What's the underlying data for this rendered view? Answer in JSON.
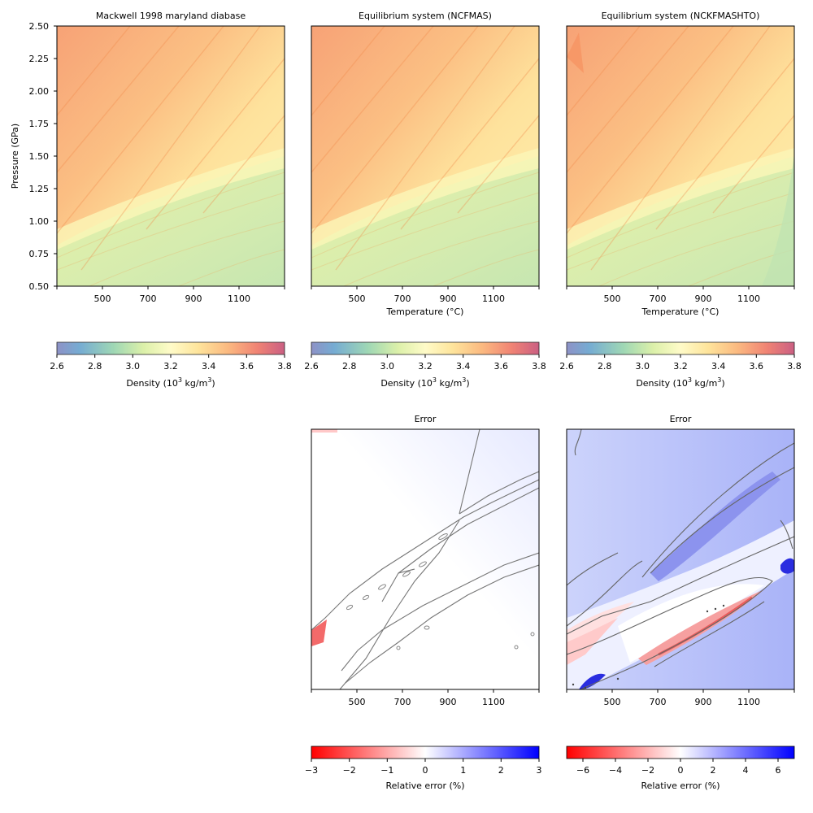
{
  "figure": {
    "titles": {
      "p1": "Mackwell 1998 maryland diabase",
      "p2": "Equilibrium system (NCFMAS)",
      "p3": "Equilibrium system (NCKFMASHTO)",
      "e2": "Error",
      "e3": "Error"
    },
    "ylabel": "Pressure (GPa)",
    "xlabel": "Temperature (°C)",
    "density_cbar_label_prefix": "Density (10",
    "density_cbar_label_exp": "3",
    "density_cbar_label_mid": " kg/m",
    "density_cbar_label_exp2": "3",
    "density_cbar_label_suffix": ")",
    "error_cbar_label": "Relative error (%)"
  },
  "chart_data": [
    {
      "id": "p1",
      "type": "heatmap",
      "title": "Mackwell 1998 maryland diabase",
      "xlabel": "",
      "ylabel": "Pressure (GPa)",
      "xlim": [
        300,
        1300
      ],
      "ylim": [
        0.5,
        2.5
      ],
      "x_ticks": [
        "500",
        "700",
        "900",
        "1100"
      ],
      "y_ticks": [
        "0.50",
        "0.75",
        "1.00",
        "1.25",
        "1.50",
        "1.75",
        "2.00",
        "2.25",
        "2.50"
      ],
      "colorbar": {
        "label": "Density (10³ kg/m³)",
        "range": [
          2.6,
          3.8
        ],
        "ticks": [
          "2.6",
          "2.8",
          "3.0",
          "3.2",
          "3.4",
          "3.6",
          "3.8"
        ],
        "colormap": "Spectral_r"
      }
    },
    {
      "id": "p2",
      "type": "heatmap",
      "title": "Equilibrium system (NCFMAS)",
      "xlabel": "Temperature (°C)",
      "xlim": [
        300,
        1300
      ],
      "ylim": [
        0.5,
        2.5
      ],
      "x_ticks": [
        "500",
        "700",
        "900",
        "1100"
      ],
      "colorbar": {
        "label": "Density (10³ kg/m³)",
        "range": [
          2.6,
          3.8
        ],
        "ticks": [
          "2.6",
          "2.8",
          "3.0",
          "3.2",
          "3.4",
          "3.6",
          "3.8"
        ],
        "colormap": "Spectral_r"
      }
    },
    {
      "id": "p3",
      "type": "heatmap",
      "title": "Equilibrium system (NCKFMASHTO)",
      "xlabel": "Temperature (°C)",
      "xlim": [
        300,
        1300
      ],
      "ylim": [
        0.5,
        2.5
      ],
      "x_ticks": [
        "500",
        "700",
        "900",
        "1100"
      ],
      "colorbar": {
        "label": "Density (10³ kg/m³)",
        "range": [
          2.6,
          3.8
        ],
        "ticks": [
          "2.6",
          "2.8",
          "3.0",
          "3.2",
          "3.4",
          "3.6",
          "3.8"
        ],
        "colormap": "Spectral_r"
      }
    },
    {
      "id": "e2",
      "type": "heatmap",
      "title": "Error",
      "xlim": [
        300,
        1300
      ],
      "x_ticks": [
        "500",
        "700",
        "900",
        "1100"
      ],
      "colorbar": {
        "label": "Relative error (%)",
        "range": [
          -3,
          3
        ],
        "ticks": [
          "−3",
          "−2",
          "−1",
          "0",
          "1",
          "2",
          "3"
        ],
        "colormap": "bwr_r"
      }
    },
    {
      "id": "e3",
      "type": "heatmap",
      "title": "Error",
      "xlim": [
        300,
        1300
      ],
      "x_ticks": [
        "500",
        "700",
        "900",
        "1100"
      ],
      "colorbar": {
        "label": "Relative error (%)",
        "range": [
          -7,
          7
        ],
        "ticks": [
          "−6",
          "−4",
          "−2",
          "0",
          "2",
          "4",
          "6"
        ],
        "colormap": "bwr_r"
      }
    }
  ]
}
